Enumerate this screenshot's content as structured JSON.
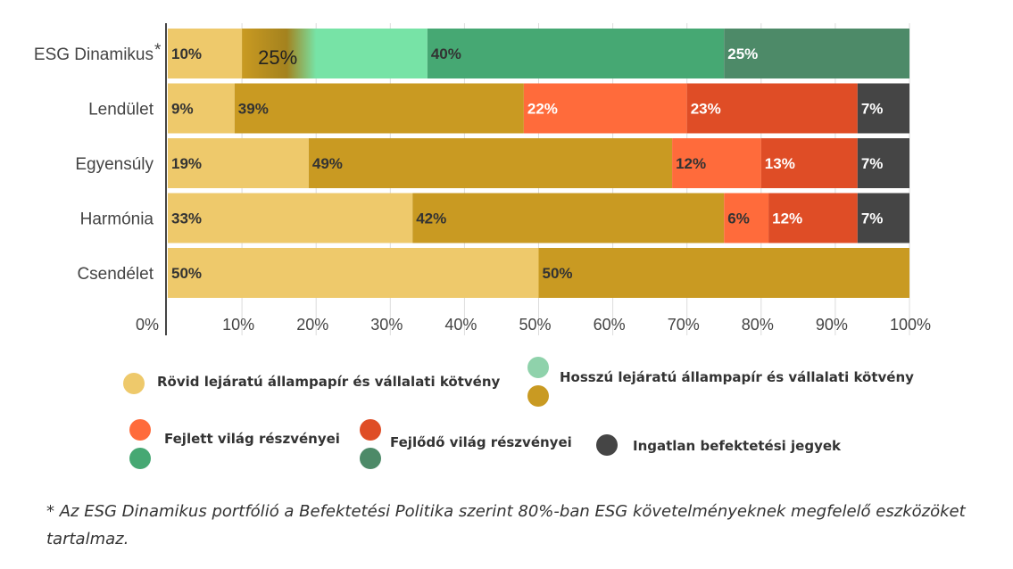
{
  "chart_data": {
    "type": "bar",
    "orientation": "horizontal",
    "stacked": true,
    "categories": [
      "ESG Dinamikus*",
      "Lendület",
      "Egyensúly",
      "Harmónia",
      "Csendélet"
    ],
    "x_ticks": [
      "0%",
      "10%",
      "20%",
      "30%",
      "40%",
      "50%",
      "60%",
      "70%",
      "80%",
      "90%",
      "100%"
    ],
    "xlim": [
      0,
      100
    ],
    "grid": true,
    "segments": [
      [
        {
          "value": 10,
          "label": "10%",
          "color": "#eec96b",
          "text_color": "#333333"
        },
        {
          "value": 25,
          "label": "25%",
          "color": "gradient",
          "text_color": "#222222"
        },
        {
          "value": 40,
          "label": "40%",
          "color": "#46a873",
          "text_color": "#333333"
        },
        {
          "value": 25,
          "label": "25%",
          "color": "#4d8a68",
          "text_color": "#ffffff"
        }
      ],
      [
        {
          "value": 9,
          "label": "9%",
          "color": "#eec96b",
          "text_color": "#333333"
        },
        {
          "value": 39,
          "label": "39%",
          "color": "#c99a22",
          "text_color": "#333333"
        },
        {
          "value": 22,
          "label": "22%",
          "color": "#ff6b3b",
          "text_color": "#ffffff"
        },
        {
          "value": 23,
          "label": "23%",
          "color": "#df4d26",
          "text_color": "#ffffff"
        },
        {
          "value": 7,
          "label": "7%",
          "color": "#454545",
          "text_color": "#ffffff"
        }
      ],
      [
        {
          "value": 19,
          "label": "19%",
          "color": "#eec96b",
          "text_color": "#333333"
        },
        {
          "value": 49,
          "label": "49%",
          "color": "#c99a22",
          "text_color": "#333333"
        },
        {
          "value": 12,
          "label": "12%",
          "color": "#ff6b3b",
          "text_color": "#333333"
        },
        {
          "value": 13,
          "label": "13%",
          "color": "#df4d26",
          "text_color": "#ffffff"
        },
        {
          "value": 7,
          "label": "7%",
          "color": "#454545",
          "text_color": "#ffffff"
        }
      ],
      [
        {
          "value": 33,
          "label": "33%",
          "color": "#eec96b",
          "text_color": "#333333"
        },
        {
          "value": 42,
          "label": "42%",
          "color": "#c99a22",
          "text_color": "#333333"
        },
        {
          "value": 6,
          "label": "6%",
          "color": "#ff6b3b",
          "text_color": "#333333"
        },
        {
          "value": 12,
          "label": "12%",
          "color": "#df4d26",
          "text_color": "#ffffff"
        },
        {
          "value": 7,
          "label": "7%",
          "color": "#454545",
          "text_color": "#ffffff"
        }
      ],
      [
        {
          "value": 50,
          "label": "50%",
          "color": "#eec96b",
          "text_color": "#333333"
        },
        {
          "value": 50,
          "label": "50%",
          "color": "#c99a22",
          "text_color": "#333333"
        }
      ]
    ],
    "esg_gradient": [
      "#c99a22",
      "#a4821e",
      "#77e3a6"
    ],
    "legend": [
      {
        "label": "Rövid lejáratú állampapír és vállalati kötvény",
        "colors": [
          "#eec96b"
        ]
      },
      {
        "label": "Hosszú lejáratú állampapír és vállalati kötvény",
        "colors": [
          "#8fd2ab",
          "#c99a22"
        ]
      },
      {
        "label": "Fejlett világ részvényei",
        "colors": [
          "#ff6b3b",
          "#46a873"
        ]
      },
      {
        "label": "Fejlődő világ részvényei",
        "colors": [
          "#df4d26",
          "#4d8a68"
        ]
      },
      {
        "label": "Ingatlan befektetési jegyek",
        "colors": [
          "#454545"
        ]
      }
    ]
  },
  "footnote": "* Az ESG Dinamikus portfólió a Befektetési Politika szerint 80%-ban ESG követelményeknek megfelelő eszközöket tartalmaz."
}
